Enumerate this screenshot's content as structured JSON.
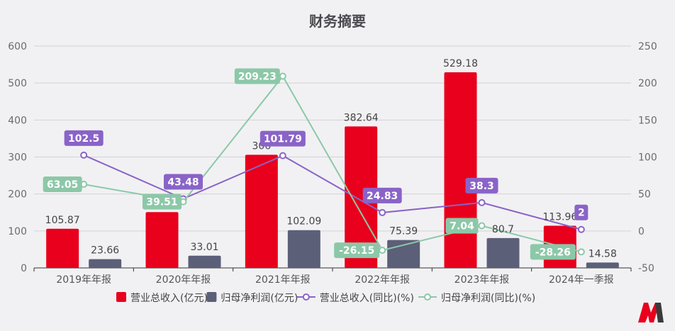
{
  "chart_data": {
    "type": "bar",
    "title": "财务摘要",
    "categories": [
      "2019年年报",
      "2020年年报",
      "2021年年报",
      "2022年年报",
      "2023年年报",
      "2024年一季报"
    ],
    "y_left": {
      "min": 0,
      "max": 600,
      "ticks": [
        0,
        100,
        200,
        300,
        400,
        500,
        600
      ]
    },
    "y_right": {
      "min": -50,
      "max": 250,
      "ticks": [
        -50,
        0,
        50,
        100,
        150,
        200,
        250
      ]
    },
    "series": [
      {
        "name": "营业总收入(亿元)",
        "type": "bar",
        "axis": "left",
        "color": "#e8001c",
        "values": [
          105.87,
          151.0,
          306.0,
          382.64,
          529.18,
          113.96
        ],
        "labels": [
          "105.87",
          "",
          "306",
          "382.64",
          "529.18",
          "113.96"
        ]
      },
      {
        "name": "归母净利润(亿元)",
        "type": "bar",
        "axis": "left",
        "color": "#5c5f78",
        "values": [
          23.66,
          33.01,
          102.09,
          75.39,
          80.7,
          14.58
        ],
        "labels": [
          "23.66",
          "33.01",
          "102.09",
          "75.39",
          "80.7",
          "14.58"
        ]
      },
      {
        "name": "营业总收入(同比)(%)",
        "type": "line",
        "axis": "right",
        "color": "#8a63c8",
        "values": [
          102.5,
          43.48,
          101.79,
          24.83,
          38.3,
          2
        ],
        "labels": [
          "102.5",
          "43.48",
          "101.79",
          "24.83",
          "38.3",
          "2"
        ]
      },
      {
        "name": "归母净利润(同比)(%)",
        "type": "line",
        "axis": "right",
        "color": "#8cc8a8",
        "values": [
          63.05,
          39.51,
          209.23,
          -26.15,
          7.04,
          -28.26
        ],
        "labels": [
          "63.05",
          "39.51",
          "209.23",
          "-26.15",
          "7.04",
          "-28.26"
        ]
      }
    ],
    "legend_position": "bottom"
  },
  "colors": {
    "background": "#f1f1f3",
    "logo_red": "#e8001c",
    "logo_dark": "#3a3a3a"
  },
  "logo": {
    "icon": "brand-logo-icon"
  }
}
